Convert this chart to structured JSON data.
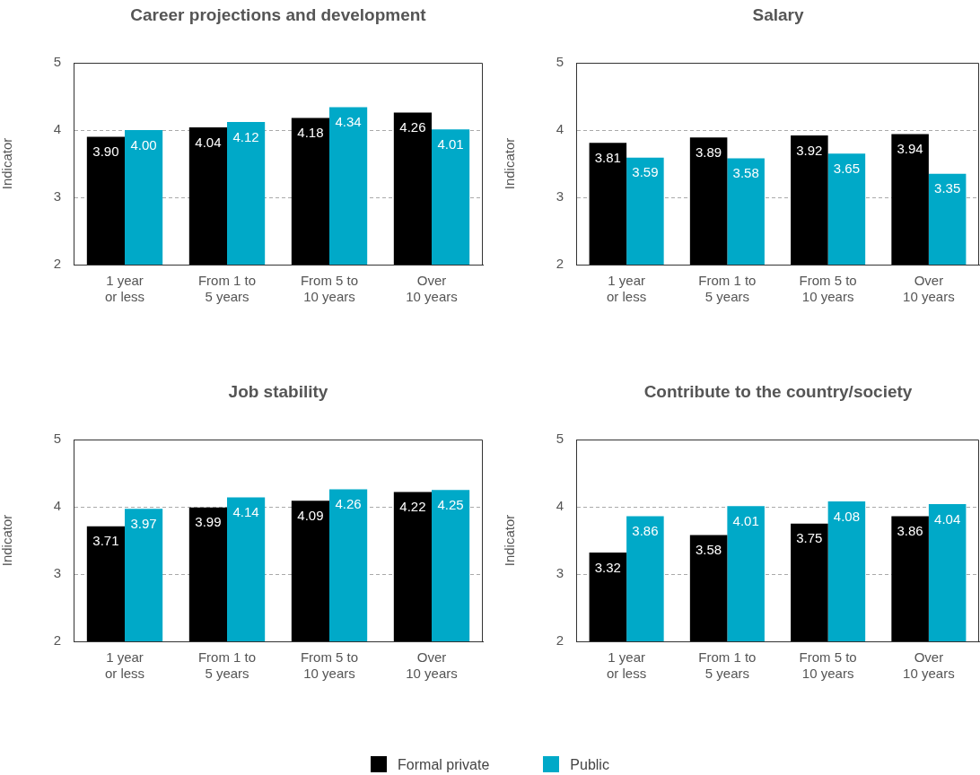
{
  "chart_data": [
    {
      "type": "bar",
      "title": "Career projections and development",
      "ylabel": "Indicator",
      "categories": [
        "1 year\nor less",
        "From 1 to\n5 years",
        "From 5 to\n10 years",
        "Over\n10 years"
      ],
      "ylim": [
        2,
        5
      ],
      "yticks": [
        2,
        3,
        4,
        5
      ],
      "grid": "y",
      "legend": "bottom",
      "series": [
        {
          "name": "Formal private",
          "color": "#000000",
          "values": [
            3.9,
            4.04,
            4.18,
            4.26
          ],
          "value_labels": [
            "3.90",
            "4.04",
            "4.18",
            "4.26"
          ]
        },
        {
          "name": "Public",
          "color": "#00a9c8",
          "values": [
            4.0,
            4.12,
            4.34,
            4.01
          ],
          "value_labels": [
            "4.00",
            "4.12",
            "4.34",
            "4.01"
          ]
        }
      ]
    },
    {
      "type": "bar",
      "title": "Salary",
      "ylabel": "Indicator",
      "categories": [
        "1 year\nor less",
        "From 1 to\n5 years",
        "From 5 to\n10 years",
        "Over\n10 years"
      ],
      "ylim": [
        2,
        5
      ],
      "yticks": [
        2,
        3,
        4,
        5
      ],
      "grid": "y",
      "series": [
        {
          "color": "#000000",
          "values": [
            3.81,
            3.89,
            3.92,
            3.94
          ],
          "value_labels": [
            "3.81",
            "3.89",
            "3.92",
            "3.94"
          ]
        },
        {
          "color": "#00a9c8",
          "values": [
            3.59,
            3.58,
            3.65,
            3.35
          ],
          "value_labels": [
            "3.59",
            "3.58",
            "3.65",
            "3.35"
          ]
        }
      ]
    },
    {
      "type": "bar",
      "title": "Job stability",
      "ylabel": "Indicator",
      "categories": [
        "1 year\nor less",
        "From 1 to\n5 years",
        "From 5 to\n10 years",
        "Over\n10 years"
      ],
      "ylim": [
        2,
        5
      ],
      "yticks": [
        2,
        3,
        4,
        5
      ],
      "grid": "y",
      "series": [
        {
          "color": "#000000",
          "values": [
            3.71,
            3.99,
            4.09,
            4.22
          ],
          "value_labels": [
            "3.71",
            "3.99",
            "4.09",
            "4.22"
          ]
        },
        {
          "color": "#00a9c8",
          "values": [
            3.97,
            4.14,
            4.26,
            4.25
          ],
          "value_labels": [
            "3.97",
            "4.14",
            "4.26",
            "4.25"
          ]
        }
      ]
    },
    {
      "type": "bar",
      "title": "Contribute to the country/society",
      "ylabel": "Indicator",
      "categories": [
        "1 year\nor less",
        "From 1 to\n5 years",
        "From 5 to\n10 years",
        "Over\n10 years"
      ],
      "ylim": [
        2,
        5
      ],
      "yticks": [
        2,
        3,
        4,
        5
      ],
      "grid": "y",
      "series": [
        {
          "color": "#000000",
          "values": [
            3.32,
            3.58,
            3.75,
            3.86
          ],
          "value_labels": [
            "3.32",
            "3.58",
            "3.75",
            "3.86"
          ]
        },
        {
          "color": "#00a9c8",
          "values": [
            3.86,
            4.01,
            4.08,
            4.04
          ],
          "value_labels": [
            "3.86",
            "4.01",
            "4.08",
            "4.04"
          ]
        }
      ]
    }
  ]
}
